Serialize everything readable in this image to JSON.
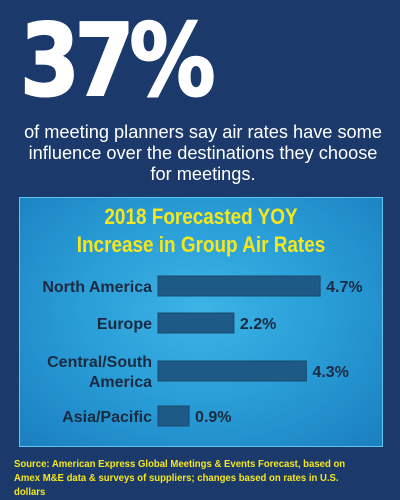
{
  "headline": {
    "stat": "37%",
    "text": "of meeting planners say air rates have some influence over the destinations they choose for meetings."
  },
  "chart_data": {
    "type": "bar",
    "orientation": "horizontal",
    "title_lines": [
      "2018 Forecasted YOY",
      "Increase in Group Air Rates"
    ],
    "categories": [
      [
        "North America"
      ],
      [
        "Europe"
      ],
      [
        "Central/South",
        "America"
      ],
      [
        "Asia/Pacific"
      ]
    ],
    "values": [
      4.7,
      2.2,
      4.3,
      0.9
    ],
    "value_labels": [
      "4.7%",
      "2.2%",
      "4.3%",
      "0.9%"
    ],
    "unit": "%",
    "grid": false,
    "colors": {
      "bar": "#1d5a86",
      "bar_edge": "#174a70",
      "panel": "#2a9fd8",
      "title": "#f5e71c"
    }
  },
  "source": "Source: American Express Global Meetings & Events Forecast, based on Amex M&E data & surveys of suppliers; changes based on rates in U.S. dollars"
}
